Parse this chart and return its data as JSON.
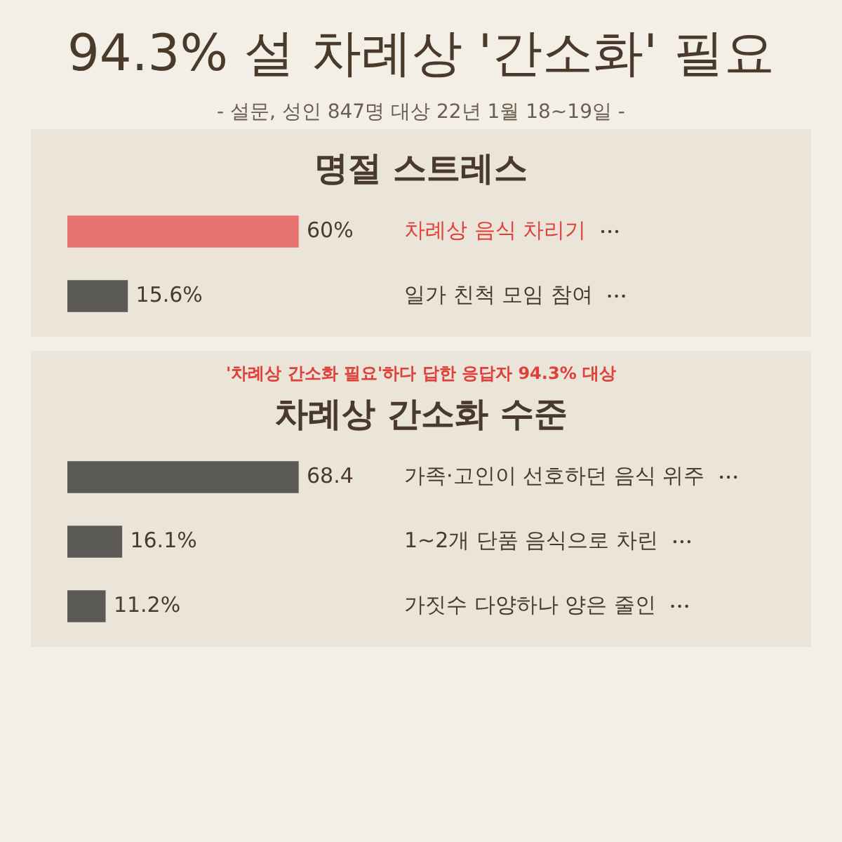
{
  "chart_data": [
    {
      "type": "other",
      "title": "94.3% 설 차례상 '간소화' 필요",
      "subtitle": "- 설문, 성인 847명 대상 22년 1월 18~19일 -"
    },
    {
      "type": "bar",
      "orientation": "horizontal",
      "title": "명절 스트레스",
      "categories": [
        "차례상 음식 차리기",
        "일가 친척 모임 참여"
      ],
      "values": [
        60,
        15.6
      ],
      "colors": [
        "#e8736e",
        "#5b5a57"
      ],
      "value_labels": [
        "60%",
        "15.6%"
      ]
    },
    {
      "type": "bar",
      "orientation": "horizontal",
      "title": "차례상 간소화 수준",
      "annotations": [
        "'차례상 간소화 필요'하다 답한 응답자 94.3% 대상"
      ],
      "categories": [
        "가족·고인이 선호하던 음식 위주",
        "1~2개 단품 음식으로 차린",
        "가짓수 다양하나 양은 줄인"
      ],
      "values": [
        68.4,
        16.1,
        11.2
      ],
      "colors": [
        "#5b5a57",
        "#5b5a57",
        "#5b5a57"
      ],
      "value_labels": [
        "68.4",
        "16.1%",
        "11.2%"
      ]
    }
  ]
}
